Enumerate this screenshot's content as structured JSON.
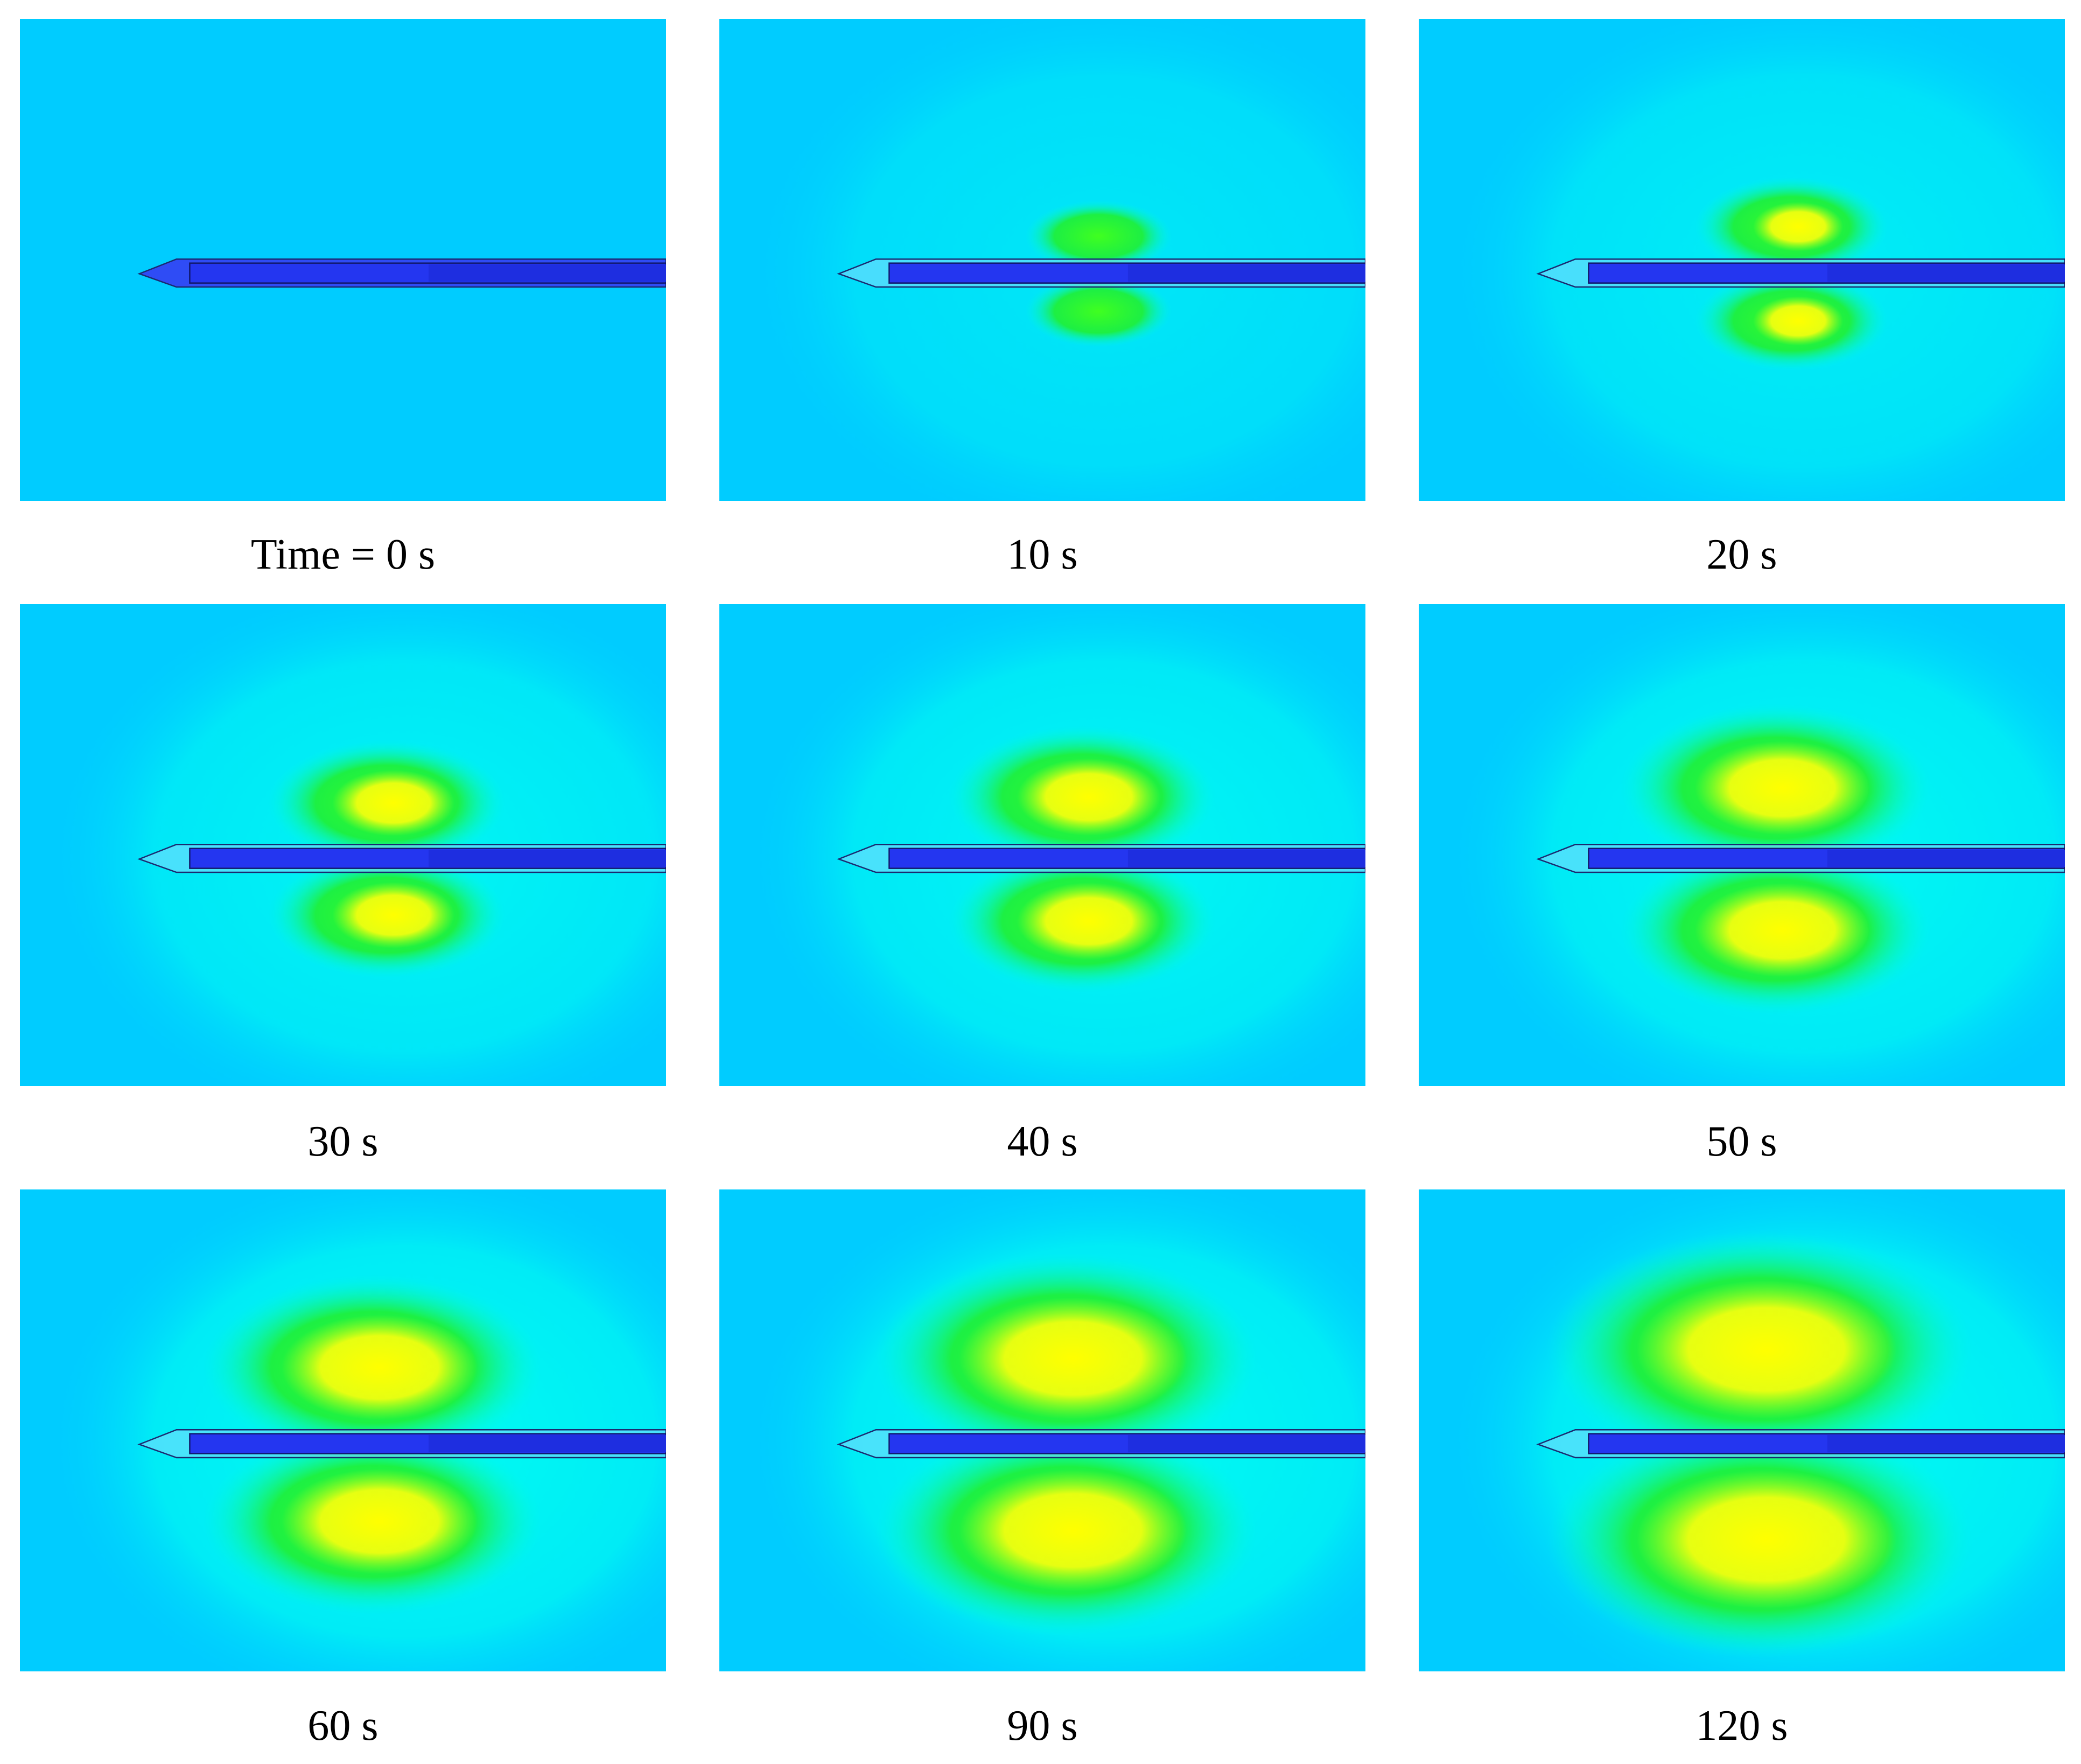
{
  "panels": [
    {
      "label": "Time = 0 s"
    },
    {
      "label": "10 s"
    },
    {
      "label": "20 s"
    },
    {
      "label": "30 s"
    },
    {
      "label": "40 s"
    },
    {
      "label": "50 s"
    },
    {
      "label": "60 s"
    },
    {
      "label": "90 s"
    },
    {
      "label": "120 s"
    }
  ]
}
